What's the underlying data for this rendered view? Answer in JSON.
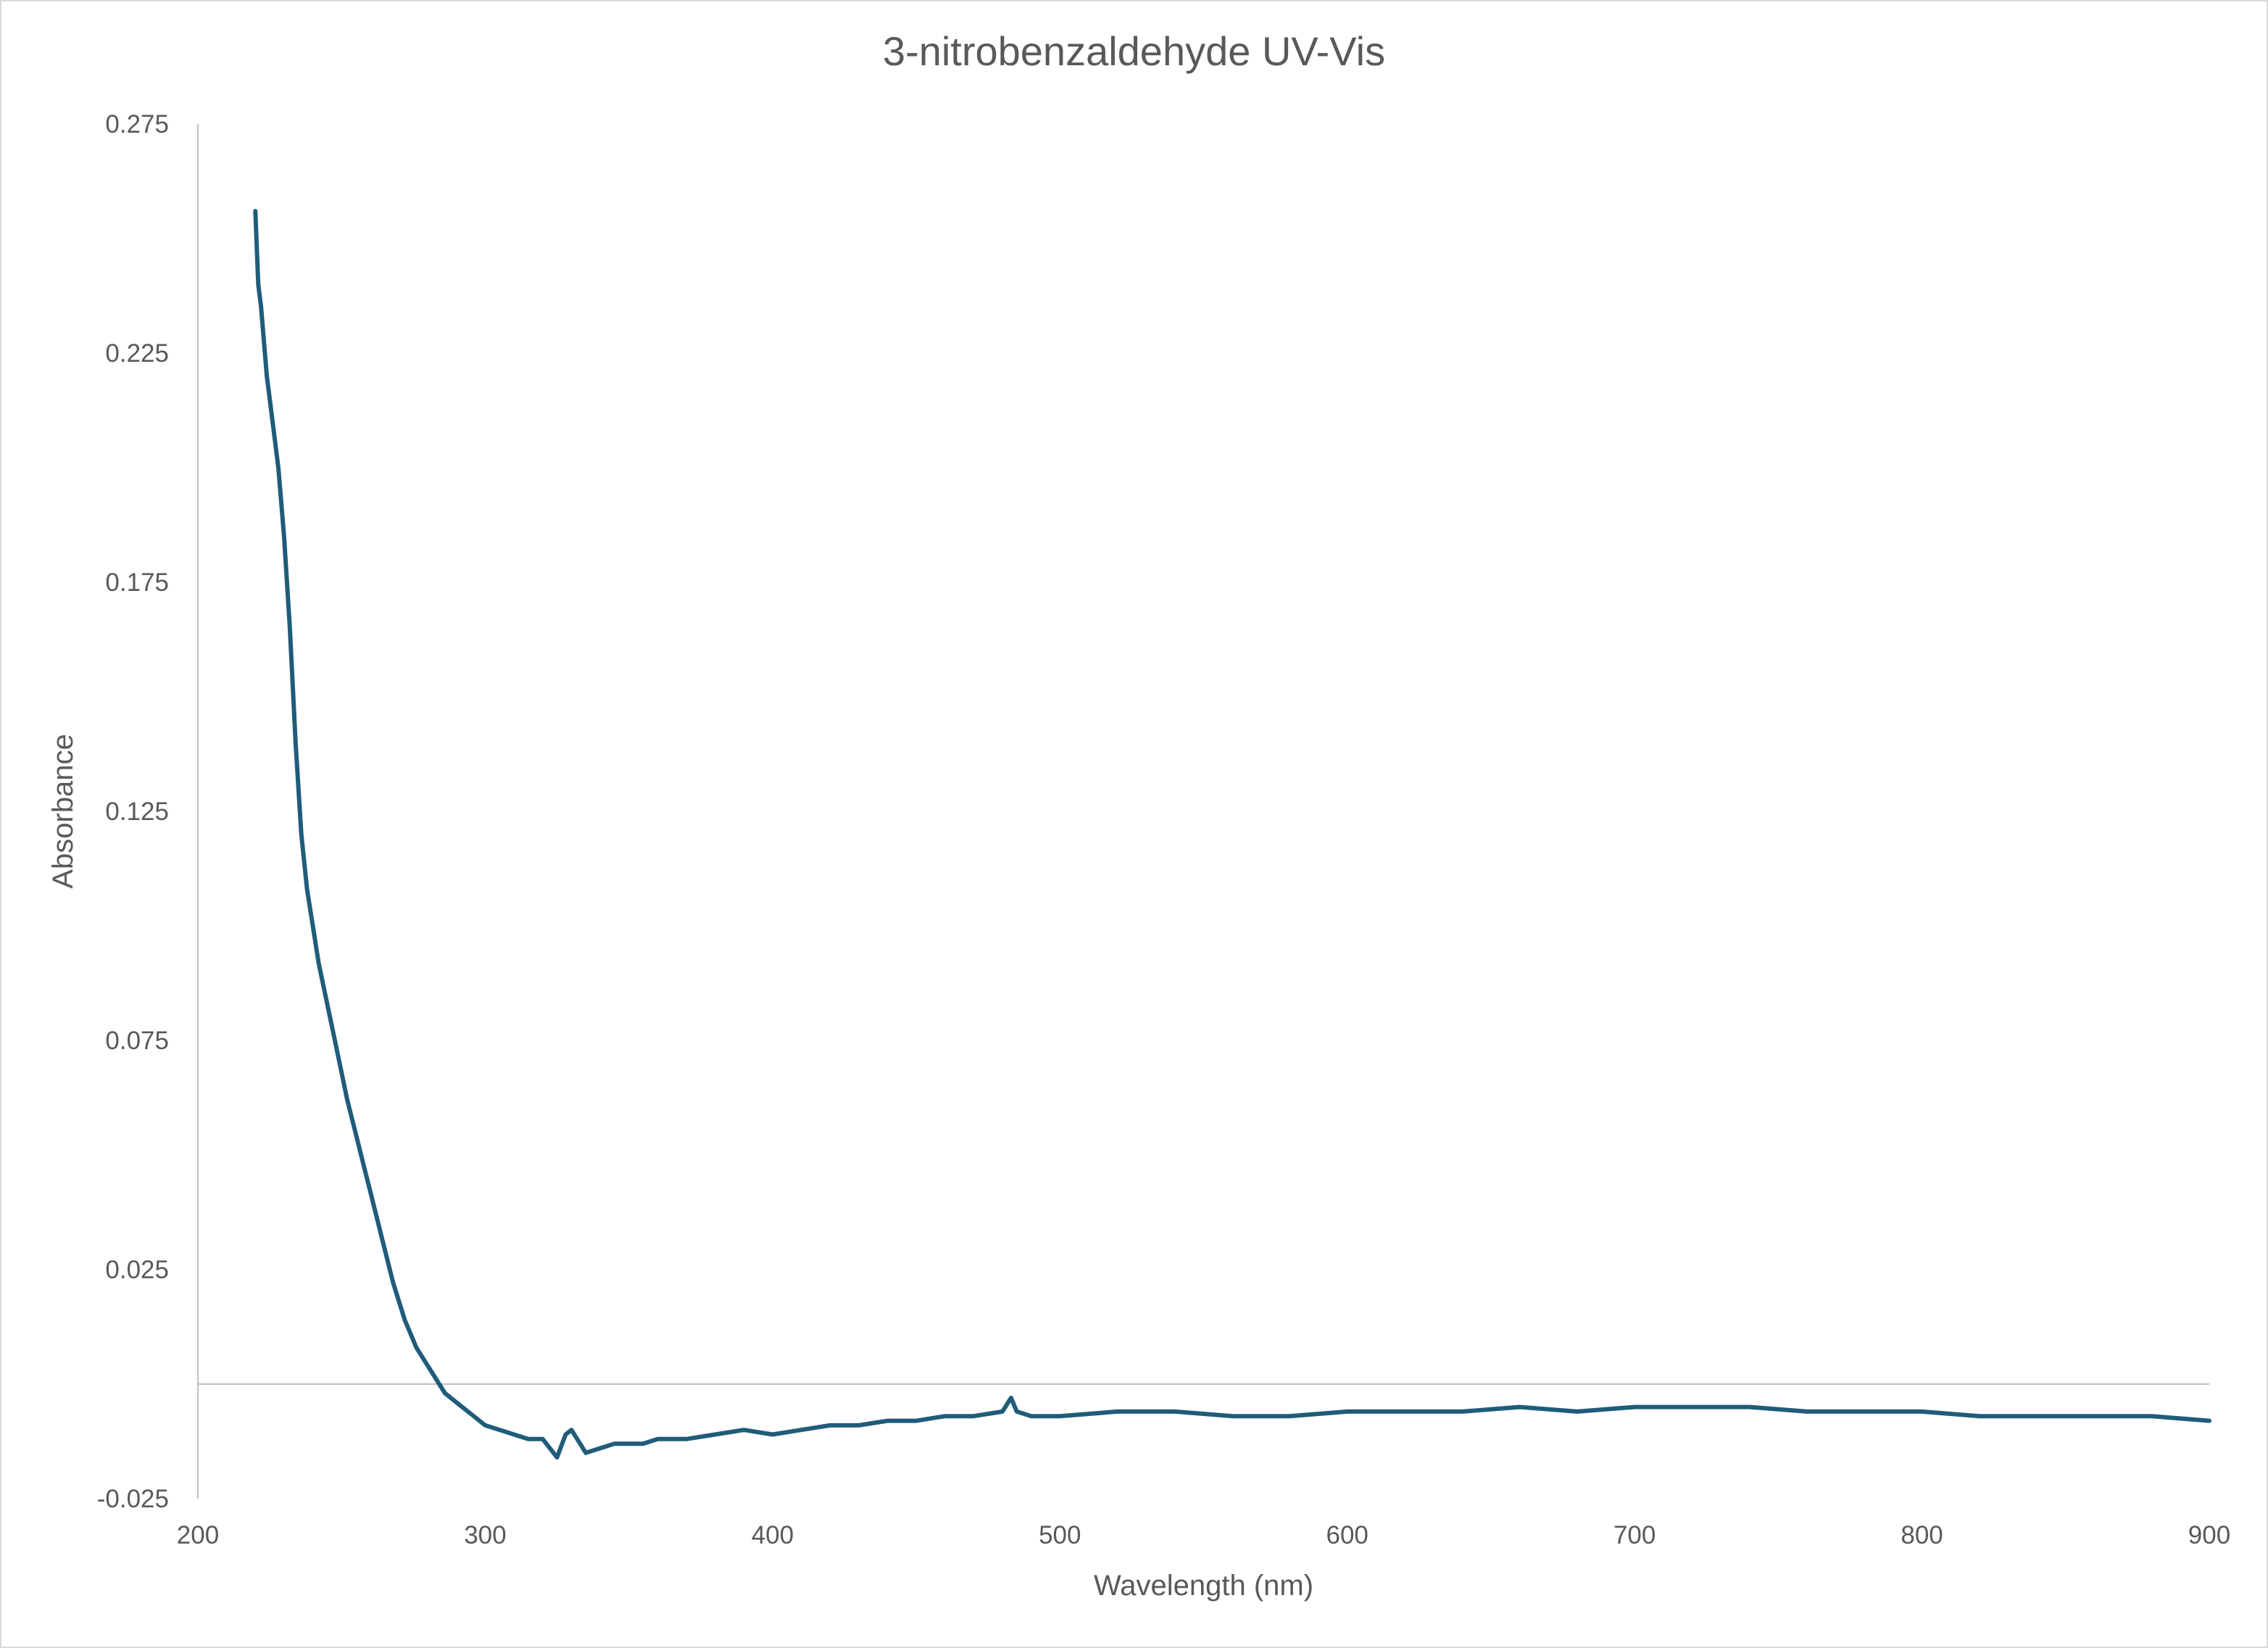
{
  "chart_data": {
    "type": "line",
    "title": "3-nitrobenzaldehyde UV-Vis",
    "xlabel": "Wavelength (nm)",
    "ylabel": "Absorbance",
    "xlim": [
      200,
      900
    ],
    "ylim": [
      -0.025,
      0.275
    ],
    "x_ticks": [
      "200",
      "300",
      "400",
      "500",
      "600",
      "700",
      "800",
      "900"
    ],
    "y_ticks": [
      "-0.025",
      "0.025",
      "0.075",
      "0.125",
      "0.175",
      "0.225",
      "0.275"
    ],
    "grid": false,
    "legend": "none",
    "series": [
      {
        "color": "#1F5C7A",
        "x": [
          220,
          221,
          222,
          224,
          226,
          228,
          230,
          232,
          234,
          236,
          238,
          240,
          242,
          244,
          246,
          248,
          250,
          252,
          254,
          256,
          258,
          260,
          262,
          264,
          266,
          268,
          270,
          272,
          274,
          276,
          278,
          280,
          282,
          284,
          286,
          288,
          290,
          292,
          294,
          296,
          298,
          300,
          305,
          310,
          315,
          320,
          325,
          328,
          330,
          335,
          340,
          345,
          350,
          355,
          360,
          370,
          380,
          390,
          400,
          410,
          420,
          430,
          440,
          450,
          460,
          470,
          480,
          483,
          485,
          490,
          500,
          520,
          540,
          560,
          580,
          600,
          620,
          640,
          660,
          680,
          700,
          720,
          740,
          760,
          780,
          800,
          820,
          840,
          860,
          880,
          900
        ],
        "y": [
          0.256,
          0.24,
          0.235,
          0.22,
          0.21,
          0.2,
          0.185,
          0.165,
          0.14,
          0.12,
          0.108,
          0.1,
          0.092,
          0.086,
          0.08,
          0.074,
          0.068,
          0.062,
          0.057,
          0.052,
          0.047,
          0.042,
          0.037,
          0.032,
          0.027,
          0.022,
          0.018,
          0.014,
          0.011,
          0.008,
          0.006,
          0.004,
          0.002,
          0.0,
          -0.002,
          -0.003,
          -0.004,
          -0.005,
          -0.006,
          -0.007,
          -0.008,
          -0.009,
          -0.01,
          -0.011,
          -0.012,
          -0.012,
          -0.016,
          -0.011,
          -0.01,
          -0.015,
          -0.014,
          -0.013,
          -0.013,
          -0.013,
          -0.012,
          -0.012,
          -0.011,
          -0.01,
          -0.011,
          -0.01,
          -0.009,
          -0.009,
          -0.008,
          -0.008,
          -0.007,
          -0.007,
          -0.006,
          -0.003,
          -0.006,
          -0.007,
          -0.007,
          -0.006,
          -0.006,
          -0.007,
          -0.007,
          -0.006,
          -0.006,
          -0.006,
          -0.005,
          -0.006,
          -0.005,
          -0.005,
          -0.005,
          -0.006,
          -0.006,
          -0.006,
          -0.007,
          -0.007,
          -0.007,
          -0.007,
          -0.008
        ]
      }
    ]
  }
}
